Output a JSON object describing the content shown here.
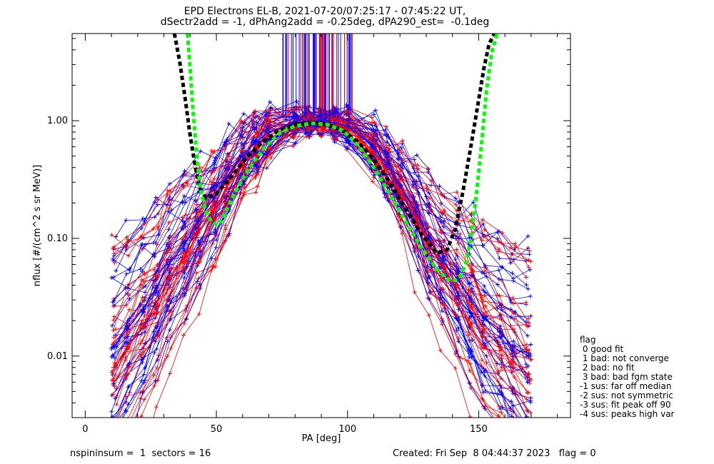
{
  "title": {
    "line1": "EPD Electrons EL-B, 2021-07-20/07:25:17 - 07:45:22 UT,",
    "line2": "dSectr2add = -1, dPhAng2add = -0.25deg, dPA290_est=  -0.1deg"
  },
  "footer": {
    "left": "nspininsum =  1  sectors = 16",
    "right": "Created: Fri Sep  8 04:44:37 2023   flag = 0"
  },
  "legend": {
    "title": "flag",
    "items": [
      " 0 good fit",
      " 1 bad: not converge",
      " 2 bad: no fit",
      " 3 bad: bad fgm state",
      "-1 sus: far off median",
      "-2 sus: not symmetric",
      "-3 sus: fit peak off 90",
      "-4 sus: peaks high var"
    ]
  },
  "colors": {
    "series_red": "#ff0000",
    "series_blue": "#0000ff",
    "fit_black": "#000000",
    "fit_green": "#00ff00"
  },
  "chart_data": {
    "type": "line",
    "xlabel": "PA [deg]",
    "ylabel": "nflux [#/(cm^2 s sr MeV)]",
    "xlim": [
      -5,
      185
    ],
    "ylim": [
      0.003,
      5.5
    ],
    "yscale": "log",
    "x_ticks": [
      0,
      50,
      100,
      150
    ],
    "y_ticks": [
      0.01,
      0.1,
      1.0
    ],
    "y_tick_labels": [
      "0.01",
      "0.10",
      "1.00"
    ],
    "grid": false,
    "series": [
      {
        "color": "red",
        "marker": "+",
        "x": [
          11,
          16,
          22,
          27,
          32,
          38,
          43,
          49,
          54,
          60,
          65,
          70,
          80,
          85,
          90,
          95,
          100,
          110,
          115,
          120,
          126,
          131,
          136,
          142,
          147,
          152,
          158,
          163,
          169
        ],
        "y": [
          0.008,
          0.012,
          0.018,
          0.028,
          0.045,
          0.07,
          0.11,
          0.17,
          0.27,
          0.42,
          0.58,
          0.75,
          0.92,
          0.95,
          0.97,
          0.93,
          0.88,
          0.55,
          0.38,
          0.25,
          0.15,
          0.09,
          0.06,
          0.04,
          0.026,
          0.017,
          0.012,
          0.009,
          0.007
        ]
      },
      {
        "color": "blue",
        "marker": "+",
        "x": [
          11,
          16,
          22,
          27,
          32,
          38,
          43,
          49,
          54,
          60,
          65,
          70,
          80,
          85,
          90,
          95,
          100,
          110,
          115,
          120,
          126,
          131,
          136,
          142,
          147,
          152,
          158,
          163,
          169
        ],
        "y": [
          0.012,
          0.017,
          0.025,
          0.038,
          0.06,
          0.09,
          0.14,
          0.22,
          0.33,
          0.5,
          0.66,
          0.8,
          0.95,
          0.98,
          0.99,
          0.96,
          0.9,
          0.6,
          0.42,
          0.28,
          0.17,
          0.1,
          0.065,
          0.045,
          0.03,
          0.021,
          0.016,
          0.012,
          0.01
        ]
      },
      {
        "color": "black",
        "style": "dashed-fit",
        "x": [
          34,
          36,
          38,
          40,
          42,
          44,
          46,
          50,
          56,
          62,
          68,
          74,
          80,
          86,
          92,
          98,
          104,
          110,
          116,
          122,
          128,
          134,
          138,
          141,
          144,
          147,
          150,
          152,
          154,
          156
        ],
        "y": [
          5.5,
          3.2,
          1.6,
          0.75,
          0.4,
          0.26,
          0.22,
          0.24,
          0.34,
          0.5,
          0.67,
          0.83,
          0.93,
          0.96,
          0.93,
          0.83,
          0.66,
          0.47,
          0.3,
          0.18,
          0.11,
          0.075,
          0.08,
          0.12,
          0.25,
          0.6,
          1.5,
          2.8,
          4.5,
          5.5
        ]
      },
      {
        "color": "green",
        "style": "dashed-fit",
        "x": [
          39,
          40,
          41,
          42,
          43,
          44,
          46,
          48,
          50,
          52,
          56,
          62,
          68,
          74,
          80,
          86,
          92,
          98,
          104,
          110,
          116,
          122,
          128,
          134,
          138,
          141,
          143,
          145,
          147,
          149,
          151,
          153,
          155,
          157
        ],
        "y": [
          5.5,
          2.8,
          1.3,
          0.7,
          0.4,
          0.26,
          0.17,
          0.14,
          0.13,
          0.14,
          0.22,
          0.38,
          0.58,
          0.78,
          0.9,
          0.95,
          0.93,
          0.83,
          0.62,
          0.4,
          0.24,
          0.14,
          0.085,
          0.055,
          0.045,
          0.044,
          0.048,
          0.06,
          0.1,
          0.22,
          0.6,
          1.8,
          3.8,
          5.5
        ]
      }
    ]
  }
}
